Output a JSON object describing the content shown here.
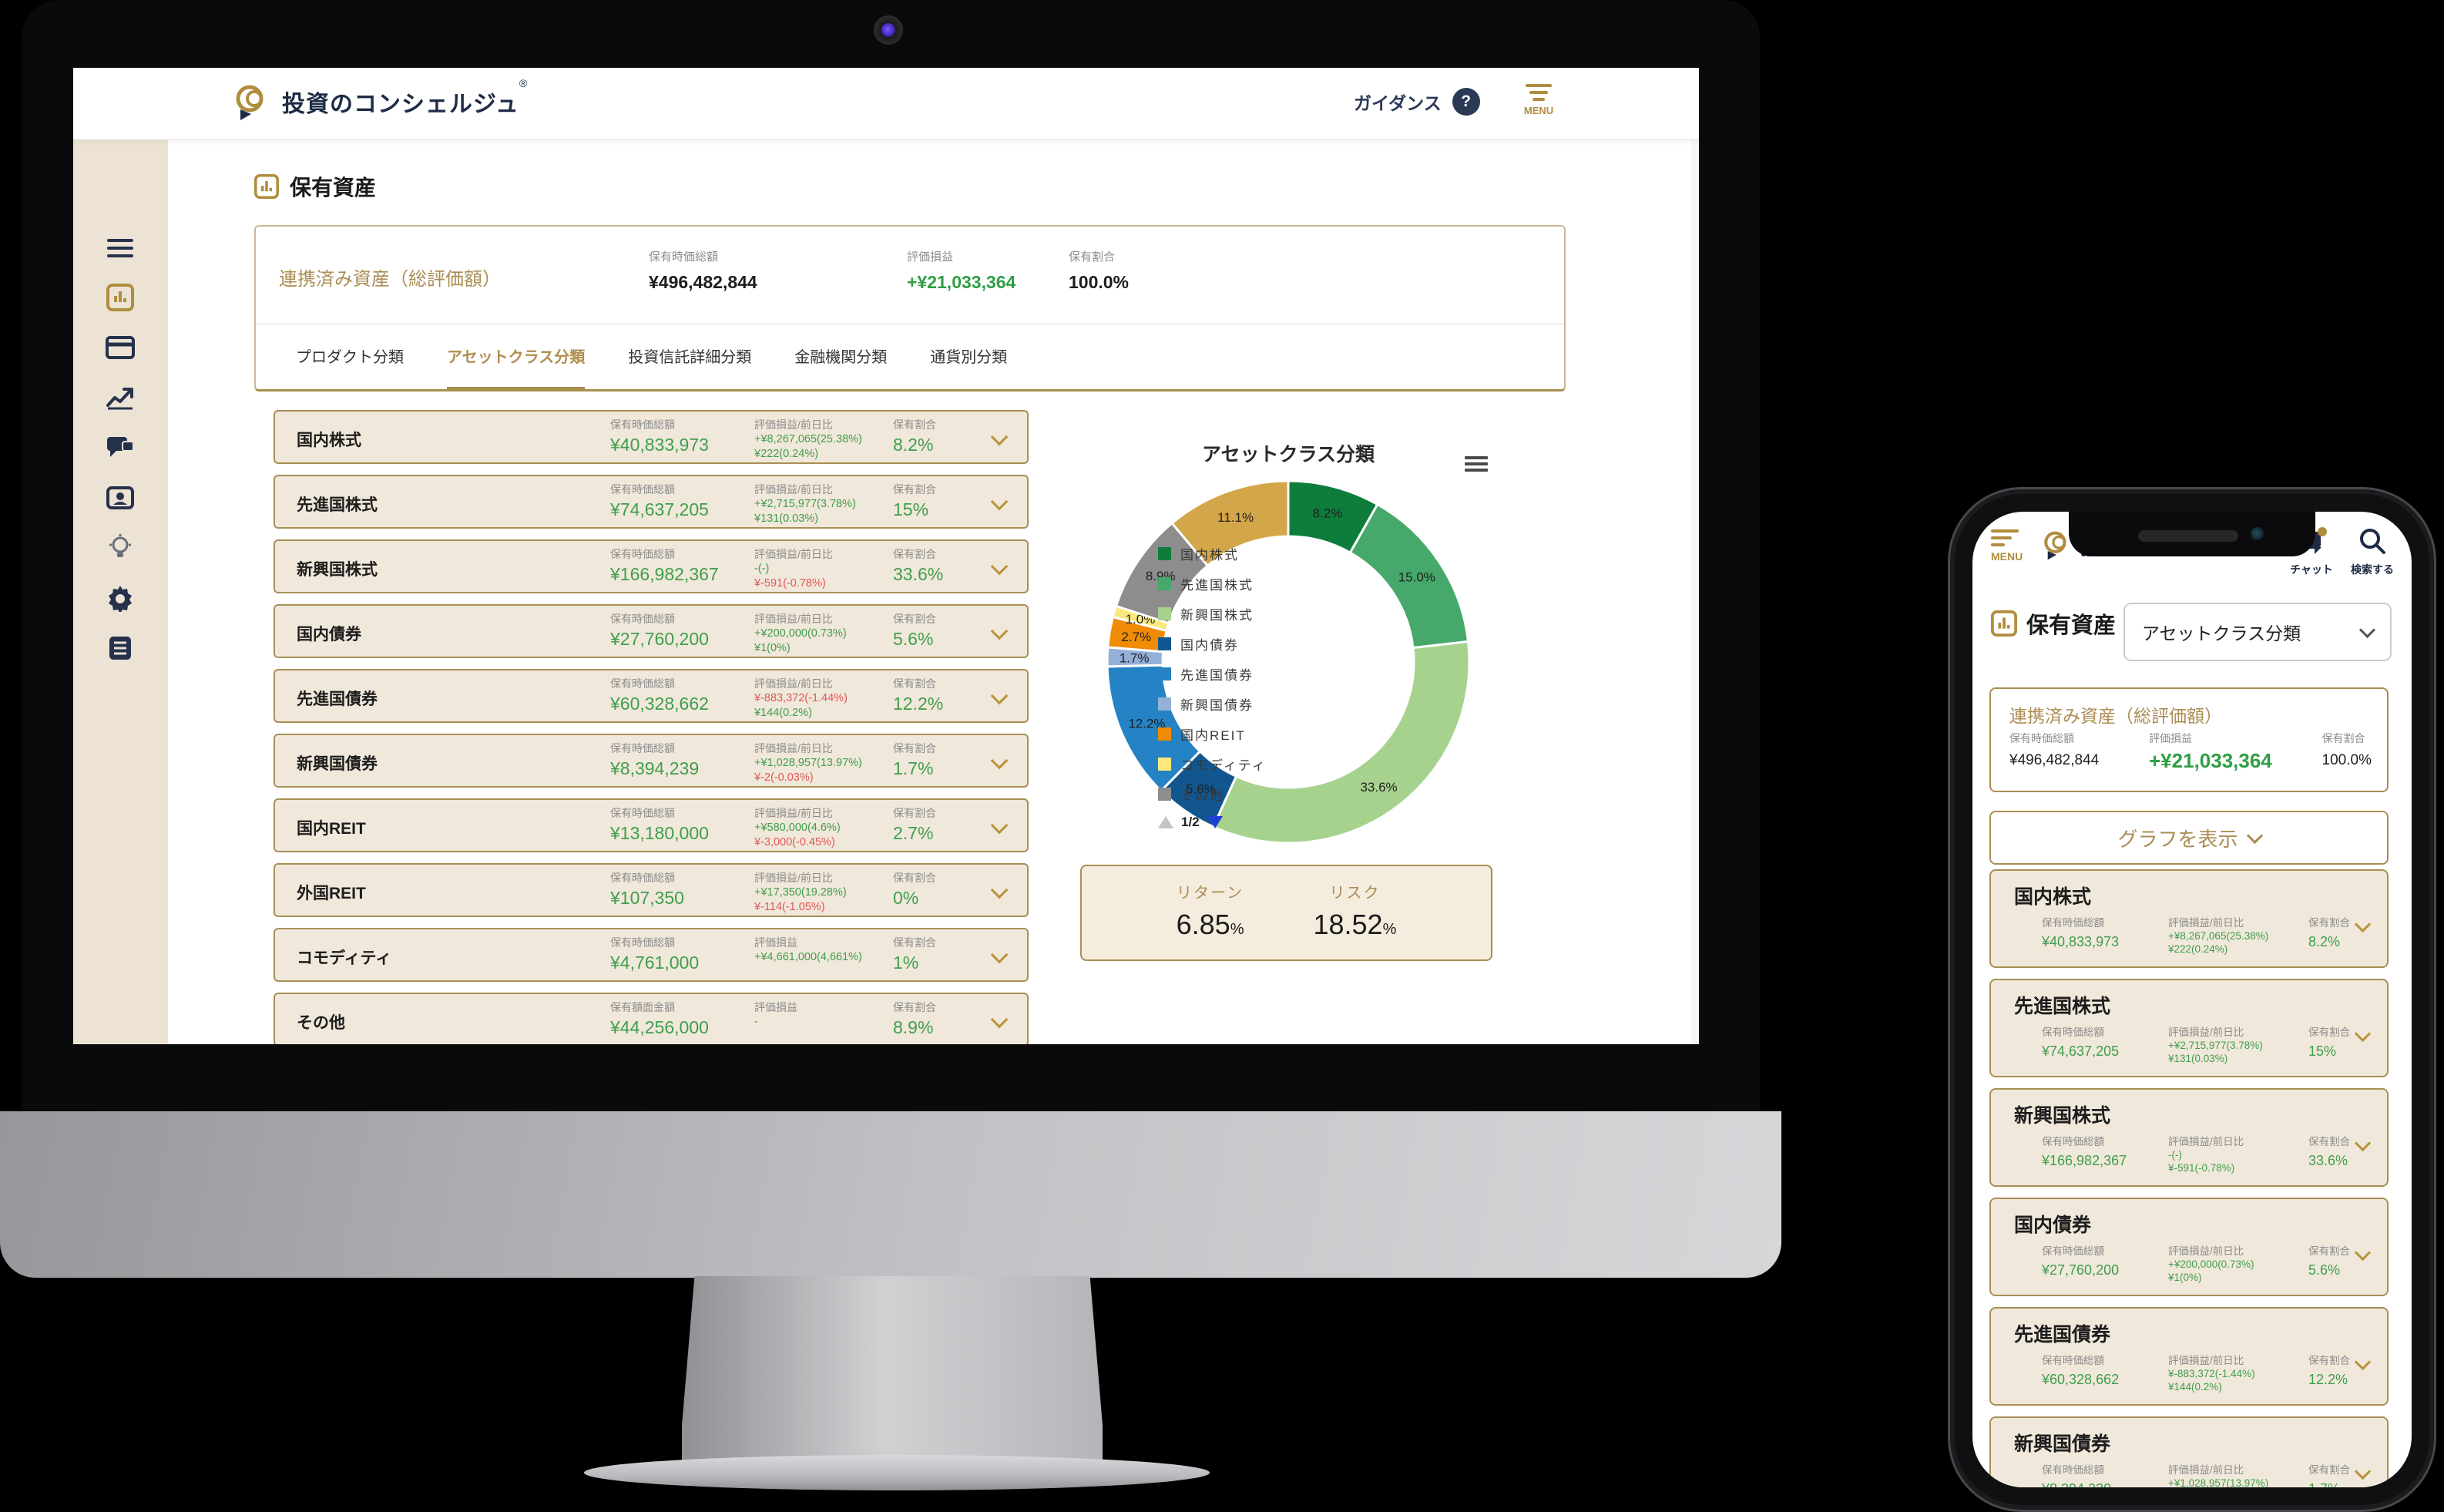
{
  "colors": {
    "brand_gold": "#ab8d53",
    "navy": "#1e2b45",
    "green": "#3f9e4d",
    "green_big": "#2f9e44",
    "red": "#e25757",
    "row_bg": "#f0e8da",
    "row_border": "#a98f56",
    "sidebar_bg": "#ece3d5",
    "legend_page_down_blue": "#1d3fd6"
  },
  "desktop": {
    "header": {
      "logo_text": "投資のコンシェルジュ",
      "logo_reg": "®",
      "guidance_label": "ガイダンス",
      "guidance_badge": "?",
      "menu_label": "MENU"
    },
    "sidebar_icons": [
      "menu",
      "bar-chart",
      "credit-card",
      "line-chart",
      "chat",
      "id-card",
      "lightbulb",
      "gear",
      "document"
    ],
    "page_title": "保有資産",
    "summary": {
      "title": "連携済み資産（総評価額）",
      "cols": [
        {
          "label": "保有時価総額",
          "value": "¥496,482,844",
          "green": false
        },
        {
          "label": "評価損益",
          "value": "+¥21,033,364",
          "green": true
        },
        {
          "label": "保有割合",
          "value": "100.0%",
          "green": false
        }
      ]
    },
    "tabs": [
      {
        "label": "プロダクト分類",
        "active": false
      },
      {
        "label": "アセットクラス分類",
        "active": true
      },
      {
        "label": "投資信託詳細分類",
        "active": false
      },
      {
        "label": "金融機関分類",
        "active": false
      },
      {
        "label": "通貨別分類",
        "active": false
      }
    ],
    "rows": [
      {
        "name": "国内株式",
        "amount_label": "保有時価総額",
        "amount": "¥40,833,973",
        "pl_label": "評価損益/前日比",
        "pl1": "+¥8,267,065(25.38%)",
        "pl1_neg": false,
        "pl2": "¥222(0.24%)",
        "pl2_neg": false,
        "ratio_label": "保有割合",
        "ratio": "8.2%"
      },
      {
        "name": "先進国株式",
        "amount_label": "保有時価総額",
        "amount": "¥74,637,205",
        "pl_label": "評価損益/前日比",
        "pl1": "+¥2,715,977(3.78%)",
        "pl1_neg": false,
        "pl2": "¥131(0.03%)",
        "pl2_neg": false,
        "ratio_label": "保有割合",
        "ratio": "15%"
      },
      {
        "name": "新興国株式",
        "amount_label": "保有時価総額",
        "amount": "¥166,982,367",
        "pl_label": "評価損益/前日比",
        "pl1": "-(-)",
        "pl1_neg": false,
        "pl2": "¥-591(-0.78%)",
        "pl2_neg": true,
        "ratio_label": "保有割合",
        "ratio": "33.6%"
      },
      {
        "name": "国内債券",
        "amount_label": "保有時価総額",
        "amount": "¥27,760,200",
        "pl_label": "評価損益/前日比",
        "pl1": "+¥200,000(0.73%)",
        "pl1_neg": false,
        "pl2": "¥1(0%)",
        "pl2_neg": false,
        "ratio_label": "保有割合",
        "ratio": "5.6%"
      },
      {
        "name": "先進国債券",
        "amount_label": "保有時価総額",
        "amount": "¥60,328,662",
        "pl_label": "評価損益/前日比",
        "pl1": "¥-883,372(-1.44%)",
        "pl1_neg": true,
        "pl2": "¥144(0.2%)",
        "pl2_neg": false,
        "ratio_label": "保有割合",
        "ratio": "12.2%"
      },
      {
        "name": "新興国債券",
        "amount_label": "保有時価総額",
        "amount": "¥8,394,239",
        "pl_label": "評価損益/前日比",
        "pl1": "+¥1,028,957(13.97%)",
        "pl1_neg": false,
        "pl2": "¥-2(-0.03%)",
        "pl2_neg": true,
        "ratio_label": "保有割合",
        "ratio": "1.7%"
      },
      {
        "name": "国内REIT",
        "amount_label": "保有時価総額",
        "amount": "¥13,180,000",
        "pl_label": "評価損益/前日比",
        "pl1": "+¥580,000(4.6%)",
        "pl1_neg": false,
        "pl2": "¥-3,000(-0.45%)",
        "pl2_neg": true,
        "ratio_label": "保有割合",
        "ratio": "2.7%"
      },
      {
        "name": "外国REIT",
        "amount_label": "保有時価総額",
        "amount": "¥107,350",
        "pl_label": "評価損益/前日比",
        "pl1": "+¥17,350(19.28%)",
        "pl1_neg": false,
        "pl2": "¥-114(-1.05%)",
        "pl2_neg": true,
        "ratio_label": "保有割合",
        "ratio": "0%"
      },
      {
        "name": "コモディティ",
        "amount_label": "保有時価総額",
        "amount": "¥4,761,000",
        "pl_label": "評価損益",
        "pl1": "+¥4,661,000(4,661%)",
        "pl1_neg": false,
        "pl2": null,
        "pl2_neg": false,
        "ratio_label": "保有割合",
        "ratio": "1%"
      },
      {
        "name": "その他",
        "amount_label": "保有額面金額",
        "amount": "¥44,256,000",
        "pl_label": "評価損益",
        "pl1": "-",
        "pl1_neg": false,
        "pl2": null,
        "pl2_neg": false,
        "ratio_label": "保有割合",
        "ratio": "8.9%"
      }
    ],
    "risk_return": {
      "return_label": "リターン",
      "return_value": "6.85",
      "risk_label": "リスク",
      "risk_value": "18.52",
      "unit": "%"
    }
  },
  "chart_data": {
    "type": "pie",
    "donut": true,
    "title": "アセットクラス分類",
    "series": [
      {
        "label": "国内株式",
        "value": 8.2,
        "pct_label": "8.2%",
        "color": "#0e7d3b"
      },
      {
        "label": "先進国株式",
        "value": 15.0,
        "pct_label": "15.0%",
        "color": "#46a86a"
      },
      {
        "label": "新興国株式",
        "value": 33.6,
        "pct_label": "33.6%",
        "color": "#a6d28e"
      },
      {
        "label": "国内債券",
        "value": 5.6,
        "pct_label": "5.6%",
        "color": "#11568f"
      },
      {
        "label": "先進国債券",
        "value": 12.2,
        "pct_label": "12.2%",
        "color": "#2583c5"
      },
      {
        "label": "新興国債券",
        "value": 1.7,
        "pct_label": "1.7%",
        "color": "#93b0d8"
      },
      {
        "label": "国内REIT",
        "value": 2.7,
        "pct_label": "2.7%",
        "color": "#ef8b05"
      },
      {
        "label": "コモディティ",
        "value": 1.0,
        "pct_label": "1.0%",
        "color": "#fce97d"
      },
      {
        "label": "その他",
        "value": 8.9,
        "pct_label": "8.9%",
        "color": "#8d8d8d"
      },
      {
        "label": "",
        "value": 11.1,
        "pct_label": "11.1%",
        "color": "#d3a64a"
      }
    ],
    "legend_visible_count": 9,
    "legend_pagination": "1/2",
    "legend_position": "center"
  },
  "phone": {
    "header": {
      "menu_label": "MENU",
      "logo_text": "投資のコンシェルジュ",
      "chat_label": "チャット",
      "search_label": "検索する"
    },
    "page_title": "保有資産",
    "classification_select": "アセットクラス分類",
    "summary": {
      "title": "連携済み資産（総評価額）",
      "cols": [
        {
          "label": "保有時価総額",
          "value": "¥496,482,844",
          "green": false
        },
        {
          "label": "評価損益",
          "value": "+¥21,033,364",
          "green": true
        },
        {
          "label": "保有割合",
          "value": "100.0%",
          "green": false
        }
      ]
    },
    "graph_button": "グラフを表示",
    "visible_row_count": 6
  }
}
